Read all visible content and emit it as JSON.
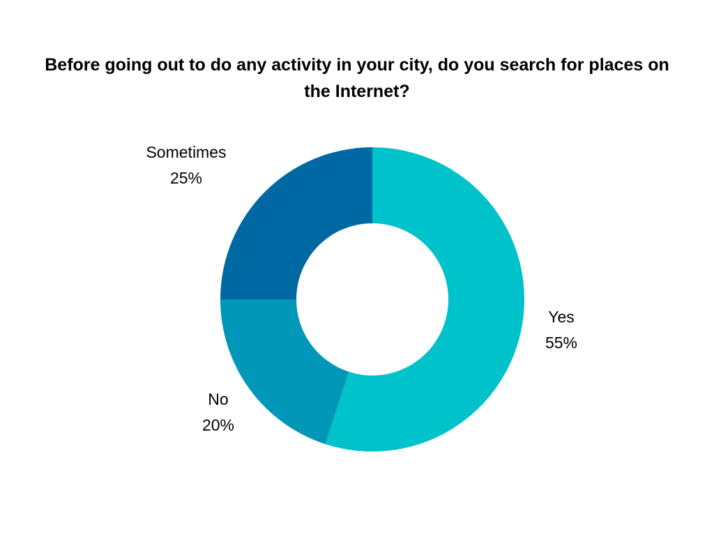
{
  "chart_data": {
    "type": "pie",
    "title": "Before going out to do any activity in your city, do you search for places on the Internet?",
    "slices": [
      {
        "label": "Yes",
        "value": 55,
        "value_text": "55%",
        "color": "#00C2CB"
      },
      {
        "label": "No",
        "value": 20,
        "value_text": "20%",
        "color": "#0097B8"
      },
      {
        "label": "Sometimes",
        "value": 25,
        "value_text": "25%",
        "color": "#0069A3"
      }
    ],
    "unit": "%",
    "legend": "none"
  }
}
